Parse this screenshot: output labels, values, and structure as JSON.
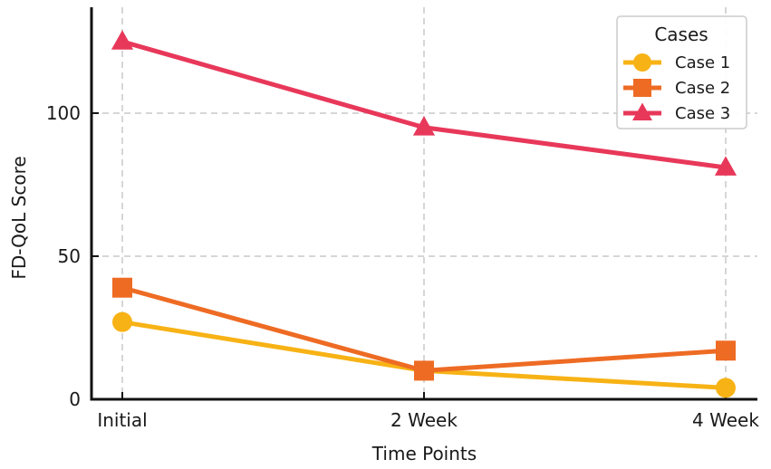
{
  "chart_data": {
    "type": "line",
    "title": "",
    "xlabel": "Time Points",
    "ylabel": "FD-QoL Score",
    "categories": [
      "Initial",
      "2 Week",
      "4 Week"
    ],
    "yticks": [
      0,
      50,
      100
    ],
    "ylim": [
      0,
      137
    ],
    "grid": true,
    "legend": {
      "title": "Cases",
      "placement": "top-right"
    },
    "series": [
      {
        "name": "Case 1",
        "marker": "circle",
        "color": "#F7B215",
        "values": [
          27,
          10,
          4
        ]
      },
      {
        "name": "Case 2",
        "marker": "square",
        "color": "#EE6B24",
        "values": [
          39,
          10,
          17
        ]
      },
      {
        "name": "Case 3",
        "marker": "triangle",
        "color": "#E8385A",
        "values": [
          125,
          95,
          81
        ]
      }
    ]
  }
}
